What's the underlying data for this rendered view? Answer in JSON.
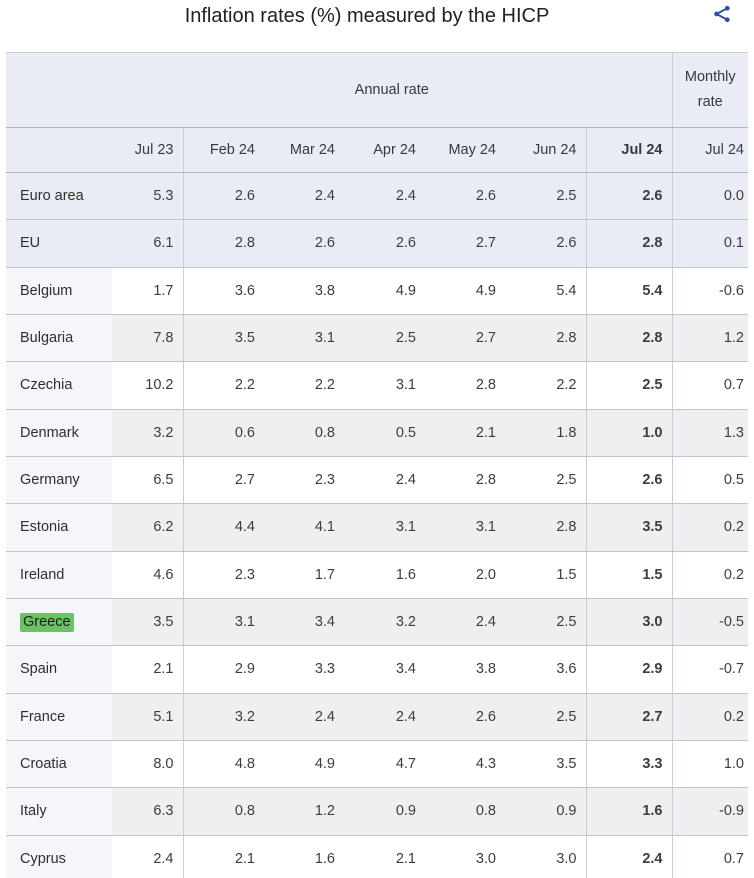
{
  "title": "Inflation rates (%) measured by the HICP",
  "icons": {
    "share": "share-icon"
  },
  "colors": {
    "accent_blue": "#2b4fa2",
    "header_bg": "#e9ecf4",
    "row_alt_gray": "#efefef",
    "row_label_bg": "#f5f6fa",
    "highlight_green": "#6bc263",
    "border": "#bfc5ce"
  },
  "chart_data": {
    "type": "table",
    "title": "Inflation rates (%) measured by the HICP",
    "column_groups": [
      {
        "label": "Annual rate",
        "span": 7
      },
      {
        "label": "Monthly rate",
        "span": 1
      }
    ],
    "columns": [
      "Jul 23",
      "Feb 24",
      "Mar 24",
      "Apr 24",
      "May 24",
      "Jun 24",
      "Jul 24",
      "Jul 24"
    ],
    "bold_column_index": 6,
    "highlighted_row": "Greece",
    "rows": [
      {
        "label": "Euro area",
        "aggregate": true,
        "values": [
          "5.3",
          "2.6",
          "2.4",
          "2.4",
          "2.6",
          "2.5",
          "2.6",
          "0.0"
        ]
      },
      {
        "label": "EU",
        "aggregate": true,
        "values": [
          "6.1",
          "2.8",
          "2.6",
          "2.6",
          "2.7",
          "2.6",
          "2.8",
          "0.1"
        ]
      },
      {
        "label": "Belgium",
        "values": [
          "1.7",
          "3.6",
          "3.8",
          "4.9",
          "4.9",
          "5.4",
          "5.4",
          "-0.6"
        ]
      },
      {
        "label": "Bulgaria",
        "values": [
          "7.8",
          "3.5",
          "3.1",
          "2.5",
          "2.7",
          "2.8",
          "2.8",
          "1.2"
        ]
      },
      {
        "label": "Czechia",
        "values": [
          "10.2",
          "2.2",
          "2.2",
          "3.1",
          "2.8",
          "2.2",
          "2.5",
          "0.7"
        ]
      },
      {
        "label": "Denmark",
        "values": [
          "3.2",
          "0.6",
          "0.8",
          "0.5",
          "2.1",
          "1.8",
          "1.0",
          "1.3"
        ]
      },
      {
        "label": "Germany",
        "values": [
          "6.5",
          "2.7",
          "2.3",
          "2.4",
          "2.8",
          "2.5",
          "2.6",
          "0.5"
        ]
      },
      {
        "label": "Estonia",
        "values": [
          "6.2",
          "4.4",
          "4.1",
          "3.1",
          "3.1",
          "2.8",
          "3.5",
          "0.2"
        ]
      },
      {
        "label": "Ireland",
        "values": [
          "4.6",
          "2.3",
          "1.7",
          "1.6",
          "2.0",
          "1.5",
          "1.5",
          "0.2"
        ]
      },
      {
        "label": "Greece",
        "highlight": true,
        "values": [
          "3.5",
          "3.1",
          "3.4",
          "3.2",
          "2.4",
          "2.5",
          "3.0",
          "-0.5"
        ]
      },
      {
        "label": "Spain",
        "values": [
          "2.1",
          "2.9",
          "3.3",
          "3.4",
          "3.8",
          "3.6",
          "2.9",
          "-0.7"
        ]
      },
      {
        "label": "France",
        "values": [
          "5.1",
          "3.2",
          "2.4",
          "2.4",
          "2.6",
          "2.5",
          "2.7",
          "0.2"
        ]
      },
      {
        "label": "Croatia",
        "values": [
          "8.0",
          "4.8",
          "4.9",
          "4.7",
          "4.3",
          "3.5",
          "3.3",
          "1.0"
        ]
      },
      {
        "label": "Italy",
        "values": [
          "6.3",
          "0.8",
          "1.2",
          "0.9",
          "0.8",
          "0.9",
          "1.6",
          "-0.9"
        ]
      },
      {
        "label": "Cyprus",
        "values": [
          "2.4",
          "2.1",
          "1.6",
          "2.1",
          "3.0",
          "3.0",
          "2.4",
          "0.7"
        ]
      }
    ]
  }
}
